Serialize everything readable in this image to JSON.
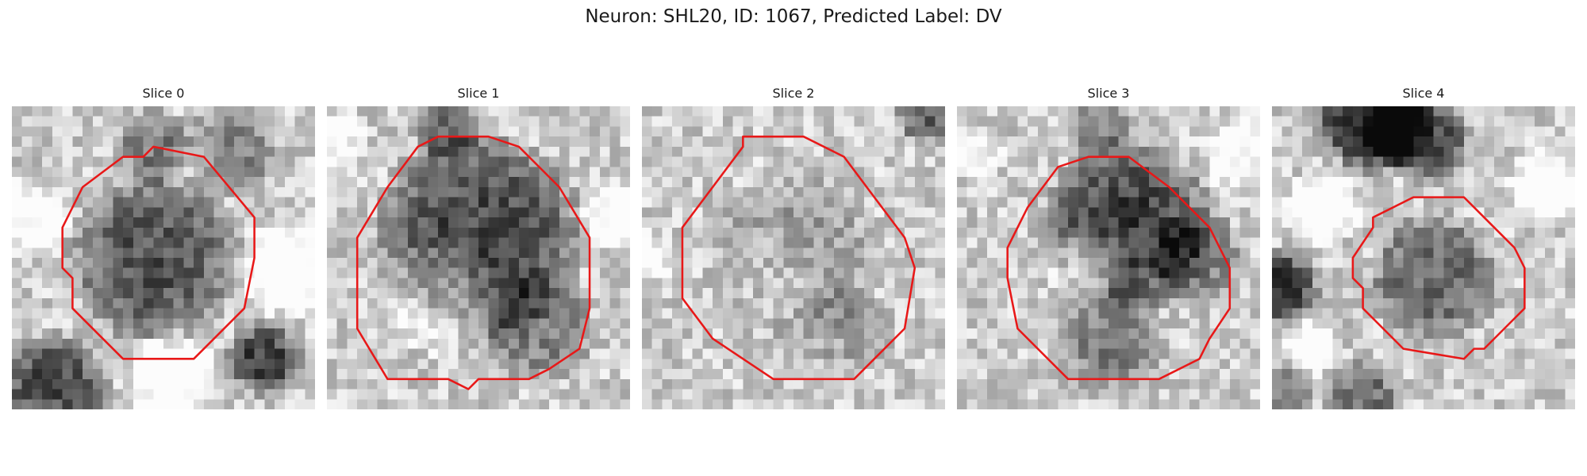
{
  "figure": {
    "title": "Neuron: SHL20, ID: 1067, Predicted Label: DV",
    "contour_color": "#e81818",
    "grid_size": 30,
    "panels": [
      {
        "title": "Slice 0",
        "outline": [
          [
            14,
            4
          ],
          [
            19,
            5
          ],
          [
            24,
            11
          ],
          [
            24,
            15
          ],
          [
            23,
            20
          ],
          [
            18,
            25
          ],
          [
            17,
            25
          ],
          [
            11,
            25
          ],
          [
            6,
            20
          ],
          [
            6,
            17
          ],
          [
            5,
            16
          ],
          [
            5,
            12
          ],
          [
            7,
            8
          ],
          [
            11,
            5
          ],
          [
            13,
            5
          ]
        ],
        "dark_blobs": [
          [
            14,
            15,
            9,
            0.48
          ],
          [
            14,
            4,
            4,
            0.32
          ],
          [
            25,
            25,
            4,
            0.55
          ],
          [
            4,
            28,
            6,
            0.5
          ],
          [
            22,
            4,
            5,
            0.28
          ]
        ],
        "light_blobs": [
          [
            27,
            16,
            5,
            0.38
          ],
          [
            2,
            11,
            4,
            0.3
          ],
          [
            16,
            27,
            5,
            0.35
          ]
        ]
      },
      {
        "title": "Slice 1",
        "outline": [
          [
            11,
            3
          ],
          [
            16,
            3
          ],
          [
            19,
            4
          ],
          [
            23,
            8
          ],
          [
            26,
            13
          ],
          [
            26,
            20
          ],
          [
            25,
            24
          ],
          [
            22,
            26
          ],
          [
            20,
            27
          ],
          [
            15,
            27
          ],
          [
            14,
            28
          ],
          [
            12,
            27
          ],
          [
            6,
            27
          ],
          [
            3,
            22
          ],
          [
            3,
            13
          ],
          [
            6,
            8
          ],
          [
            9,
            4
          ]
        ],
        "dark_blobs": [
          [
            15,
            13,
            11,
            0.52
          ],
          [
            21,
            22,
            6,
            0.3
          ],
          [
            12,
            2,
            4,
            0.35
          ]
        ],
        "light_blobs": [
          [
            11,
            19,
            6,
            0.22
          ],
          [
            1,
            3,
            3,
            0.25
          ],
          [
            29,
            11,
            4,
            0.25
          ]
        ]
      },
      {
        "title": "Slice 2",
        "outline": [
          [
            10,
            3
          ],
          [
            16,
            3
          ],
          [
            20,
            5
          ],
          [
            23,
            9
          ],
          [
            26,
            13
          ],
          [
            27,
            16
          ],
          [
            26,
            22
          ],
          [
            22,
            26
          ],
          [
            21,
            27
          ],
          [
            13,
            27
          ],
          [
            10,
            25
          ],
          [
            7,
            23
          ],
          [
            4,
            19
          ],
          [
            4,
            12
          ],
          [
            7,
            8
          ],
          [
            10,
            4
          ]
        ],
        "dark_blobs": [
          [
            15,
            15,
            9,
            0.18
          ],
          [
            28,
            1,
            3,
            0.4
          ],
          [
            20,
            22,
            5,
            0.15
          ]
        ],
        "light_blobs": [
          [
            13,
            17,
            5,
            0.12
          ],
          [
            1,
            15,
            3,
            0.2
          ]
        ]
      },
      {
        "title": "Slice 3",
        "outline": [
          [
            13,
            5
          ],
          [
            17,
            5
          ],
          [
            21,
            8
          ],
          [
            25,
            12
          ],
          [
            27,
            16
          ],
          [
            27,
            20
          ],
          [
            25,
            23
          ],
          [
            24,
            25
          ],
          [
            20,
            27
          ],
          [
            11,
            27
          ],
          [
            8,
            24
          ],
          [
            6,
            22
          ],
          [
            5,
            17
          ],
          [
            5,
            14
          ],
          [
            7,
            10
          ],
          [
            10,
            6
          ]
        ],
        "dark_blobs": [
          [
            17,
            12,
            9,
            0.55
          ],
          [
            24,
            15,
            5,
            0.3
          ],
          [
            15,
            23,
            6,
            0.3
          ],
          [
            14,
            2,
            4,
            0.3
          ]
        ],
        "light_blobs": [
          [
            13,
            16,
            4,
            0.28
          ],
          [
            2,
            5,
            3,
            0.2
          ],
          [
            28,
            5,
            4,
            0.25
          ]
        ]
      },
      {
        "title": "Slice 4",
        "outline": [
          [
            14,
            9
          ],
          [
            19,
            9
          ],
          [
            22,
            12
          ],
          [
            24,
            14
          ],
          [
            25,
            16
          ],
          [
            25,
            20
          ],
          [
            21,
            24
          ],
          [
            20,
            24
          ],
          [
            19,
            25
          ],
          [
            13,
            24
          ],
          [
            12,
            23
          ],
          [
            9,
            20
          ],
          [
            9,
            18
          ],
          [
            8,
            17
          ],
          [
            8,
            15
          ],
          [
            10,
            12
          ],
          [
            10,
            11
          ]
        ],
        "dark_blobs": [
          [
            10,
            1,
            6,
            0.7
          ],
          [
            15,
            3,
            5,
            0.5
          ],
          [
            16,
            17,
            7,
            0.4
          ],
          [
            1,
            18,
            4,
            0.6
          ],
          [
            9,
            29,
            4,
            0.4
          ],
          [
            2,
            28,
            3,
            0.35
          ]
        ],
        "light_blobs": [
          [
            5,
            10,
            4,
            0.4
          ],
          [
            27,
            8,
            4,
            0.35
          ],
          [
            4,
            24,
            3,
            0.3
          ]
        ]
      }
    ]
  }
}
